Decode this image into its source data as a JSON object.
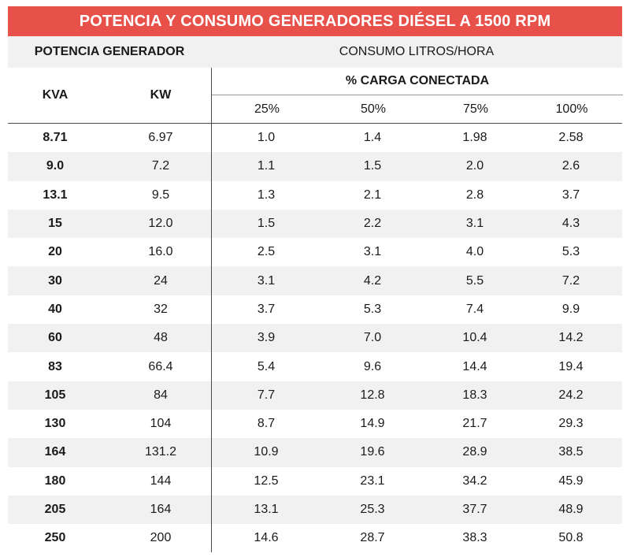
{
  "title": "POTENCIA Y CONSUMO GENERADORES DIÉSEL A 1500 RPM",
  "header": {
    "potencia": "POTENCIA GENERADOR",
    "consumo": "CONSUMO LITROS/HORA",
    "kva": "KVA",
    "kw": "KW",
    "carga": "% CARGA CONECTADA",
    "p25": "25%",
    "p50": "50%",
    "p75": "75%",
    "p100": "100%"
  },
  "rows": [
    {
      "kva": "8.71",
      "kw": "6.97",
      "c25": "1.0",
      "c50": "1.4",
      "c75": "1.98",
      "c100": "2.58"
    },
    {
      "kva": "9.0",
      "kw": "7.2",
      "c25": "1.1",
      "c50": "1.5",
      "c75": "2.0",
      "c100": "2.6"
    },
    {
      "kva": "13.1",
      "kw": "9.5",
      "c25": "1.3",
      "c50": "2.1",
      "c75": "2.8",
      "c100": "3.7"
    },
    {
      "kva": "15",
      "kw": "12.0",
      "c25": "1.5",
      "c50": "2.2",
      "c75": "3.1",
      "c100": "4.3"
    },
    {
      "kva": "20",
      "kw": "16.0",
      "c25": "2.5",
      "c50": "3.1",
      "c75": "4.0",
      "c100": "5.3"
    },
    {
      "kva": "30",
      "kw": "24",
      "c25": "3.1",
      "c50": "4.2",
      "c75": "5.5",
      "c100": "7.2"
    },
    {
      "kva": "40",
      "kw": "32",
      "c25": "3.7",
      "c50": "5.3",
      "c75": "7.4",
      "c100": "9.9"
    },
    {
      "kva": "60",
      "kw": "48",
      "c25": "3.9",
      "c50": "7.0",
      "c75": "10.4",
      "c100": "14.2"
    },
    {
      "kva": "83",
      "kw": "66.4",
      "c25": "5.4",
      "c50": "9.6",
      "c75": "14.4",
      "c100": "19.4"
    },
    {
      "kva": "105",
      "kw": "84",
      "c25": "7.7",
      "c50": "12.8",
      "c75": "18.3",
      "c100": "24.2"
    },
    {
      "kva": "130",
      "kw": "104",
      "c25": "8.7",
      "c50": "14.9",
      "c75": "21.7",
      "c100": "29.3"
    },
    {
      "kva": "164",
      "kw": "131.2",
      "c25": "10.9",
      "c50": "19.6",
      "c75": "28.9",
      "c100": "38.5"
    },
    {
      "kva": "180",
      "kw": "144",
      "c25": "12.5",
      "c50": "23.1",
      "c75": "34.2",
      "c100": "45.9"
    },
    {
      "kva": "205",
      "kw": "164",
      "c25": "13.1",
      "c50": "25.3",
      "c75": "37.7",
      "c100": "48.9"
    },
    {
      "kva": "250",
      "kw": "200",
      "c25": "14.6",
      "c50": "28.7",
      "c75": "38.3",
      "c100": "50.8"
    }
  ],
  "colors": {
    "title_bg": "#e8514a",
    "stripe": "#f1f1f1"
  }
}
